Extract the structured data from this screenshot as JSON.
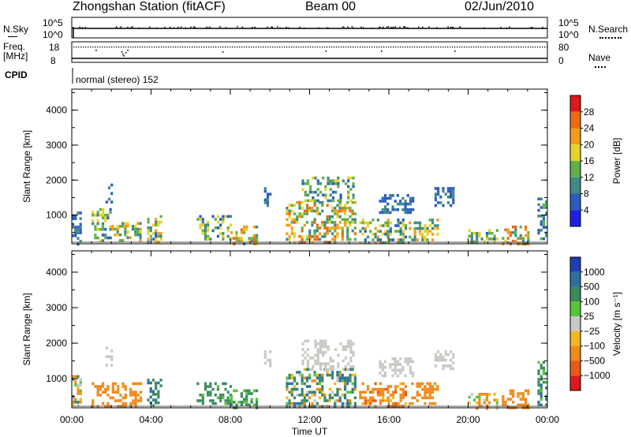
{
  "header": {
    "station": "Zhongshan Station (fitACF)",
    "beam": "Beam 00",
    "date": "02/Jun/2010"
  },
  "top_panels": {
    "nsky_label": "N.Sky",
    "nsky_ticks": [
      "10^5",
      "10^0"
    ],
    "nsearch_label": "N.Search",
    "nsearch_ticks": [
      "10^5",
      "10^0"
    ],
    "freq_label_1": "Freq.",
    "freq_label_2": "[MHz]",
    "freq_ticks": [
      "18",
      "8"
    ],
    "nave_label": "Nave",
    "nave_ticks": [
      "80",
      "0"
    ],
    "cpid_label": "CPID",
    "cpid_text": "normal (stereo) 152"
  },
  "chart_data": [
    {
      "type": "heatmap",
      "name": "power",
      "ylabel": "Slant Range [km]",
      "ylim": [
        180,
        4600
      ],
      "yticks": [
        "1000",
        "2000",
        "3000",
        "4000"
      ],
      "ytick_values": [
        1000,
        2000,
        3000,
        4000
      ],
      "xlim": [
        0,
        24
      ],
      "colorbar_label": "Power [dB]",
      "colorbar_ticks": [
        "4",
        "8",
        "12",
        "16",
        "20",
        "24",
        "28"
      ],
      "colorbar_colors": [
        "#1e1ee6",
        "#2a5dbe",
        "#3f8a86",
        "#5fb048",
        "#e8d22a",
        "#f39c1a",
        "#ee6a12",
        "#e01818"
      ],
      "echo_regions": [
        {
          "t": [
            0.0,
            0.4
          ],
          "r": [
            180,
            1100
          ],
          "v": [
            4,
            10
          ]
        },
        {
          "t": [
            1.0,
            2.0
          ],
          "r": [
            300,
            1200
          ],
          "v": [
            6,
            20
          ]
        },
        {
          "t": [
            1.7,
            2.0
          ],
          "r": [
            1400,
            1900
          ],
          "v": [
            4,
            10
          ]
        },
        {
          "t": [
            2.0,
            3.5
          ],
          "r": [
            250,
            800
          ],
          "v": [
            8,
            24
          ]
        },
        {
          "t": [
            3.8,
            4.5
          ],
          "r": [
            250,
            1000
          ],
          "v": [
            6,
            22
          ]
        },
        {
          "t": [
            6.3,
            8.0
          ],
          "r": [
            300,
            1000
          ],
          "v": [
            6,
            20
          ]
        },
        {
          "t": [
            8.0,
            9.3
          ],
          "r": [
            200,
            700
          ],
          "v": [
            10,
            26
          ]
        },
        {
          "t": [
            9.7,
            10.0
          ],
          "r": [
            1300,
            1800
          ],
          "v": [
            4,
            10
          ]
        },
        {
          "t": [
            10.8,
            14.3
          ],
          "r": [
            250,
            1400
          ],
          "v": [
            8,
            28
          ]
        },
        {
          "t": [
            11.6,
            14.2
          ],
          "r": [
            1400,
            2100
          ],
          "v": [
            4,
            18
          ]
        },
        {
          "t": [
            14.5,
            16.8
          ],
          "r": [
            200,
            900
          ],
          "v": [
            6,
            22
          ]
        },
        {
          "t": [
            15.5,
            17.2
          ],
          "r": [
            1100,
            1600
          ],
          "v": [
            4,
            10
          ]
        },
        {
          "t": [
            17.0,
            18.5
          ],
          "r": [
            300,
            900
          ],
          "v": [
            8,
            24
          ]
        },
        {
          "t": [
            18.3,
            19.2
          ],
          "r": [
            1300,
            1800
          ],
          "v": [
            4,
            10
          ]
        },
        {
          "t": [
            20.0,
            21.5
          ],
          "r": [
            200,
            600
          ],
          "v": [
            6,
            20
          ]
        },
        {
          "t": [
            21.7,
            23.0
          ],
          "r": [
            200,
            700
          ],
          "v": [
            8,
            28
          ]
        },
        {
          "t": [
            23.5,
            24.0
          ],
          "r": [
            300,
            1500
          ],
          "v": [
            4,
            14
          ]
        }
      ]
    },
    {
      "type": "heatmap",
      "name": "velocity",
      "ylabel": "Slant Range [km]",
      "ylim": [
        180,
        4600
      ],
      "yticks": [
        "1000",
        "2000",
        "3000",
        "4000"
      ],
      "ytick_values": [
        1000,
        2000,
        3000,
        4000
      ],
      "xlim": [
        0,
        24
      ],
      "xticks": [
        "00:00",
        "04:00",
        "08:00",
        "12:00",
        "16:00",
        "20:00",
        "00:00"
      ],
      "xtick_values": [
        0,
        4,
        8,
        12,
        16,
        20,
        24
      ],
      "xlabel": "Time UT",
      "colorbar_label": "Velocity [m s⁻¹]",
      "colorbar_ticks": [
        "1000",
        "500",
        "100",
        "25",
        "−25",
        "−100",
        "−500",
        "−1000"
      ],
      "colorbar_colors": [
        "#1e3fb4",
        "#2f6fa0",
        "#3a8a5c",
        "#58c43a",
        "#c8c8c4",
        "#f0b81e",
        "#f08a1a",
        "#ea5a14",
        "#e01818"
      ],
      "echo_regions": [
        {
          "t": [
            0.0,
            0.4
          ],
          "r": [
            300,
            1100
          ],
          "v": [
            -300,
            200
          ]
        },
        {
          "t": [
            1.0,
            3.5
          ],
          "r": [
            250,
            900
          ],
          "v": [
            -500,
            -100
          ]
        },
        {
          "t": [
            1.7,
            2.0
          ],
          "r": [
            1400,
            1900
          ],
          "v": [
            -20,
            20
          ]
        },
        {
          "t": [
            3.8,
            4.5
          ],
          "r": [
            250,
            1000
          ],
          "v": [
            100,
            800
          ]
        },
        {
          "t": [
            6.3,
            8.0
          ],
          "r": [
            300,
            900
          ],
          "v": [
            50,
            300
          ]
        },
        {
          "t": [
            8.0,
            9.3
          ],
          "r": [
            200,
            700
          ],
          "v": [
            30,
            200
          ]
        },
        {
          "t": [
            9.7,
            10.0
          ],
          "r": [
            1300,
            1800
          ],
          "v": [
            -20,
            20
          ]
        },
        {
          "t": [
            10.8,
            14.3
          ],
          "r": [
            250,
            1300
          ],
          "v": [
            -200,
            800
          ]
        },
        {
          "t": [
            11.6,
            14.2
          ],
          "r": [
            1300,
            2100
          ],
          "v": [
            -20,
            20
          ]
        },
        {
          "t": [
            14.5,
            16.8
          ],
          "r": [
            200,
            900
          ],
          "v": [
            -600,
            -50
          ]
        },
        {
          "t": [
            15.5,
            17.2
          ],
          "r": [
            1100,
            1600
          ],
          "v": [
            -20,
            20
          ]
        },
        {
          "t": [
            17.0,
            18.5
          ],
          "r": [
            300,
            900
          ],
          "v": [
            -500,
            -100
          ]
        },
        {
          "t": [
            18.3,
            19.2
          ],
          "r": [
            1300,
            1800
          ],
          "v": [
            -20,
            20
          ]
        },
        {
          "t": [
            20.0,
            21.5
          ],
          "r": [
            200,
            600
          ],
          "v": [
            -300,
            100
          ]
        },
        {
          "t": [
            21.7,
            23.0
          ],
          "r": [
            200,
            700
          ],
          "v": [
            -500,
            -100
          ]
        },
        {
          "t": [
            23.5,
            24.0
          ],
          "r": [
            300,
            1500
          ],
          "v": [
            50,
            600
          ]
        }
      ]
    }
  ]
}
